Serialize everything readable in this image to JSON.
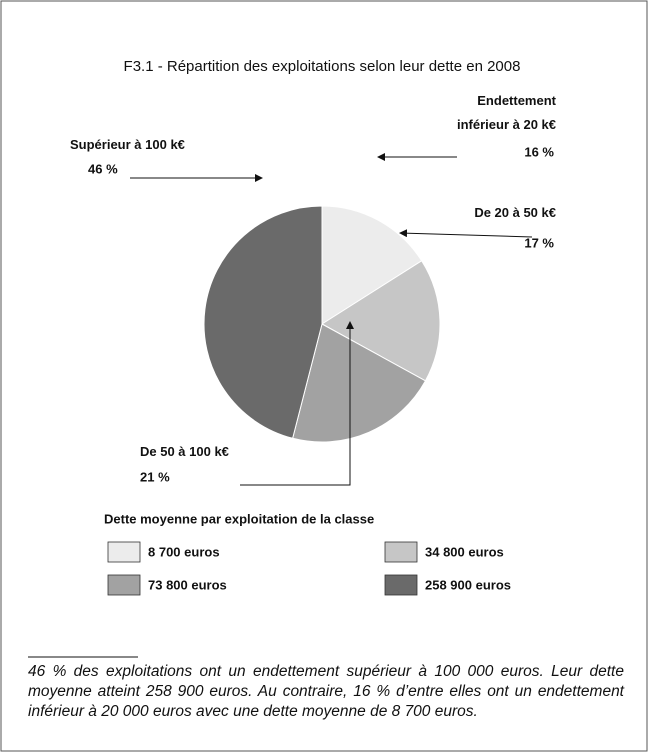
{
  "chart_data": {
    "type": "pie",
    "title": "F3.1 - Répartition des exploitations selon leur dette en 2008",
    "categories": [
      "Endettement inférieur à 20 k€",
      "De 20 à 50 k€",
      "De 50 à 100 k€",
      "Supérieur à 100 k€"
    ],
    "values": [
      16,
      17,
      21,
      46
    ],
    "value_labels": [
      "16 %",
      "17 %",
      "21 %",
      "46 %"
    ],
    "colors": [
      "#ececec",
      "#c6c6c6",
      "#a2a2a2",
      "#6a6a6a"
    ],
    "legend": {
      "title": "Dette moyenne par exploitation de la classe",
      "entries": [
        "8 700 euros",
        "34 800 euros",
        "73 800 euros",
        "258 900 euros"
      ]
    }
  },
  "footnote": "46 % des exploitations ont un endettement supérieur à 100 000 euros. Leur dette moyenne atteint 258 900 euros. Au contraire, 16 % d’entre elles ont un endettement inférieur à 20 000 euros avec une dette moyenne de 8 700 euros."
}
